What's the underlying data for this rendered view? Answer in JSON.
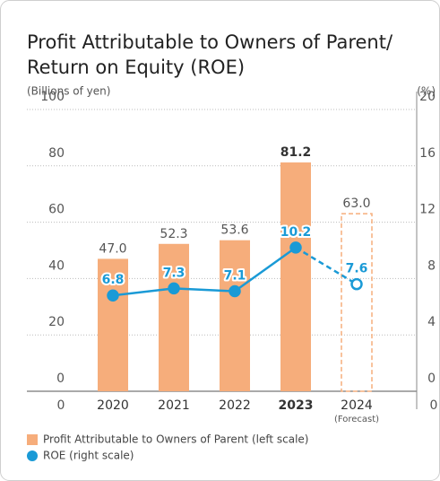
{
  "chart_data": {
    "type": "bar_line",
    "title": [
      "Profit Attributable to Owners of Parent/",
      "Return on Equity (ROE)"
    ],
    "y_axis_label": "(Billions of yen)",
    "y2_axis_label": "(%)",
    "categories": [
      "2020",
      "2021",
      "2022",
      "2023",
      "2024"
    ],
    "category_sublabels": [
      null,
      null,
      null,
      null,
      "(Forecast)"
    ],
    "highlight_index": 3,
    "forecast_index": 4,
    "ylim": [
      0,
      100
    ],
    "yticks": [
      0,
      20,
      40,
      60,
      80,
      100
    ],
    "y2lim": [
      0,
      20
    ],
    "y2ticks": [
      0,
      4,
      8,
      12,
      16,
      20
    ],
    "grid": true,
    "series": [
      {
        "name": "Profit Attributable to Owners of Parent (left scale)",
        "type": "bar",
        "color": "#f6ad7b",
        "values": [
          47.0,
          52.3,
          53.6,
          81.2,
          63.0
        ],
        "value_labels": [
          "47.0",
          "52.3",
          "53.6",
          "81.2",
          "63.0"
        ]
      },
      {
        "name": "ROE (right scale)",
        "type": "line",
        "axis": "y2",
        "color": "#1a9ad6",
        "values": [
          6.8,
          7.3,
          7.1,
          10.2,
          7.6
        ]
      }
    ]
  }
}
